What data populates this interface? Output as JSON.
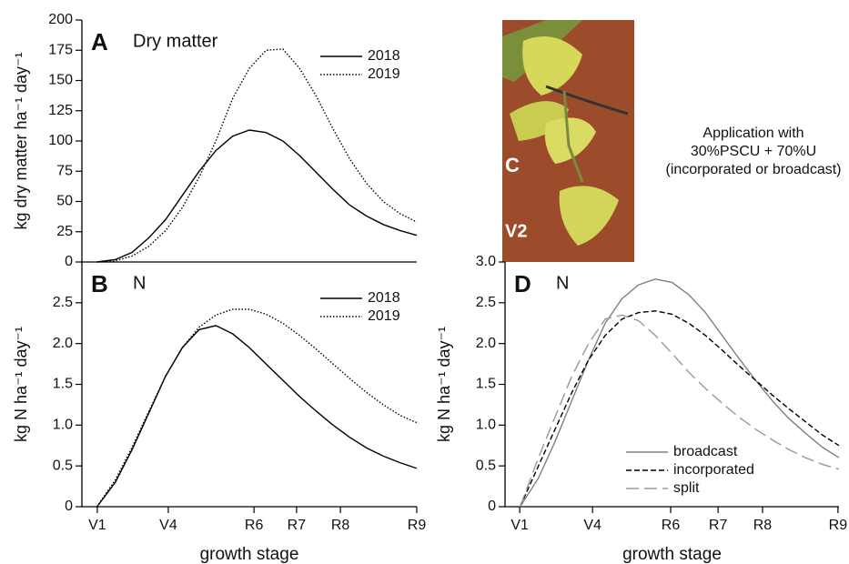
{
  "chart_data": [
    {
      "type": "line",
      "panel_label": "A",
      "title": "Dry matter",
      "ylabel": "kg dry matter ha⁻¹ day⁻¹",
      "x": [
        4.5,
        10,
        15,
        20,
        25,
        30,
        35,
        40,
        45,
        50,
        55,
        60,
        65,
        70,
        75,
        80,
        85,
        90,
        95,
        100
      ],
      "xlim": [
        0,
        100
      ],
      "ylim": [
        0,
        200
      ],
      "yticks": [
        0,
        25,
        50,
        75,
        100,
        125,
        150,
        175,
        200
      ],
      "legend": "upper right",
      "series": [
        {
          "name": "2018",
          "color": "#000000",
          "linestyle": "solid",
          "values": [
            0,
            2,
            8,
            20,
            35,
            55,
            75,
            92,
            104,
            109,
            107,
            100,
            88,
            74,
            60,
            47,
            38,
            31,
            26,
            22
          ]
        },
        {
          "name": "2019",
          "color": "#000000",
          "linestyle": "dotted",
          "values": [
            0,
            1,
            5,
            13,
            26,
            45,
            70,
            100,
            135,
            160,
            175,
            176,
            160,
            137,
            110,
            85,
            65,
            50,
            40,
            33
          ]
        }
      ]
    },
    {
      "type": "line",
      "panel_label": "B",
      "title": "N",
      "ylabel": "kg N ha⁻¹ day⁻¹",
      "xlabel": "growth stage",
      "x": [
        4.5,
        10,
        15,
        20,
        25,
        30,
        35,
        40,
        45,
        50,
        55,
        60,
        65,
        70,
        75,
        80,
        85,
        90,
        95,
        100
      ],
      "xlim": [
        0,
        100
      ],
      "xticks": [
        {
          "value": 4.6,
          "label": "V1"
        },
        {
          "value": 25.8,
          "label": "V4"
        },
        {
          "value": 51.4,
          "label": "R6"
        },
        {
          "value": 64.1,
          "label": "R7"
        },
        {
          "value": 77.2,
          "label": "R8"
        },
        {
          "value": 100,
          "label": "R9"
        }
      ],
      "ylim": [
        0,
        3
      ],
      "yticks": [
        0,
        0.5,
        {
          "value": 1,
          "label": "1.0"
        },
        1.5,
        {
          "value": 2,
          "label": "2.0"
        },
        2.5
      ],
      "legend": "upper right",
      "series": [
        {
          "name": "2018",
          "color": "#000000",
          "linestyle": "solid",
          "values": [
            0,
            0.3,
            0.7,
            1.15,
            1.6,
            1.95,
            2.17,
            2.22,
            2.12,
            1.95,
            1.75,
            1.55,
            1.35,
            1.17,
            1.0,
            0.85,
            0.72,
            0.62,
            0.54,
            0.47
          ]
        },
        {
          "name": "2019",
          "color": "#000000",
          "linestyle": "dotted",
          "values": [
            0,
            0.33,
            0.73,
            1.17,
            1.6,
            1.95,
            2.2,
            2.35,
            2.42,
            2.42,
            2.36,
            2.25,
            2.1,
            1.93,
            1.75,
            1.57,
            1.4,
            1.25,
            1.12,
            1.03
          ]
        }
      ]
    },
    {
      "type": "line",
      "panel_label": "D",
      "title": "N",
      "ylabel": "kg N ha⁻¹ day⁻¹",
      "xlabel": "growth stage",
      "x": [
        4.5,
        10,
        15,
        20,
        25,
        30,
        35,
        40,
        45,
        50,
        55,
        60,
        65,
        70,
        75,
        80,
        85,
        90,
        95,
        100
      ],
      "xlim": [
        0,
        100
      ],
      "xticks": [
        {
          "value": 4.4,
          "label": "V1"
        },
        {
          "value": 26.2,
          "label": "V4"
        },
        {
          "value": 49.6,
          "label": "R6"
        },
        {
          "value": 63.8,
          "label": "R7"
        },
        {
          "value": 77.1,
          "label": "R8"
        },
        {
          "value": 99.7,
          "label": "R9"
        }
      ],
      "ylim": [
        0,
        3
      ],
      "yticks": [
        0,
        0.5,
        {
          "value": 1,
          "label": "1.0"
        },
        1.5,
        {
          "value": 2,
          "label": "2.0"
        },
        2.5,
        {
          "value": 3,
          "label": "3.0"
        }
      ],
      "legend": "lower right",
      "series": [
        {
          "name": "broadcast",
          "color": "#808080",
          "linestyle": "solid",
          "values": [
            0,
            0.35,
            0.8,
            1.3,
            1.8,
            2.25,
            2.55,
            2.72,
            2.79,
            2.75,
            2.6,
            2.38,
            2.1,
            1.82,
            1.55,
            1.3,
            1.08,
            0.9,
            0.73,
            0.6
          ]
        },
        {
          "name": "incorporated",
          "color": "#000000",
          "linestyle": "dashed",
          "values": [
            0,
            0.5,
            0.95,
            1.4,
            1.8,
            2.1,
            2.3,
            2.38,
            2.4,
            2.36,
            2.25,
            2.1,
            1.92,
            1.73,
            1.55,
            1.37,
            1.2,
            1.04,
            0.88,
            0.75
          ]
        },
        {
          "name": "split",
          "color": "#999999",
          "linestyle": "longdash",
          "values": [
            0,
            0.6,
            1.1,
            1.6,
            2.0,
            2.3,
            2.35,
            2.28,
            2.1,
            1.88,
            1.65,
            1.45,
            1.27,
            1.1,
            0.95,
            0.82,
            0.7,
            0.6,
            0.52,
            0.46
          ]
        }
      ]
    }
  ],
  "panel_c": {
    "panel_label": "C",
    "stage": "V2",
    "caption": [
      "Application with",
      "30%PSCU + 70%U",
      "(incorporated or broadcast)"
    ]
  }
}
